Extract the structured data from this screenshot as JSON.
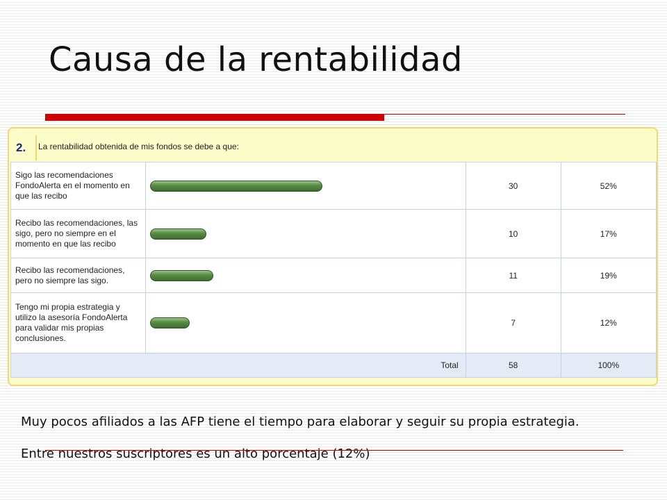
{
  "slide": {
    "title": "Causa de la rentabilidad",
    "paragraphs": [
      "Muy pocos afiliados a las AFP tiene el tiempo para elaborar y seguir su propia estrategia.",
      "Entre nuestros suscriptores es un alto porcentaje (12%)"
    ]
  },
  "chart_data": {
    "type": "bar",
    "orientation": "horizontal",
    "question_number": "2.",
    "title": "La rentabilidad obtenida de mis fondos se debe a que:",
    "categories": [
      "Sigo las recomendaciones FondoAlerta en el momento en que las recibo",
      "Recibo las recomendaciones, las sigo, pero no siempre en el momento en que las recibo",
      "Recibo las recomendaciones, pero no siempre las sigo.",
      "Tengo mi propia estrategia y utilizo la asesoría FondoAlerta para validar mis propias conclusiones."
    ],
    "values": [
      30,
      10,
      11,
      7
    ],
    "percent_labels": [
      "52%",
      "17%",
      "19%",
      "12%"
    ],
    "percents": [
      52,
      17,
      19,
      12
    ],
    "total": {
      "label": "Total",
      "value": "58",
      "percent": "100%"
    },
    "colors": {
      "bar": "#4f8a3c",
      "panel": "#fcfcc8",
      "total_row": "#e4eaf6",
      "accent": "#cc0000"
    }
  }
}
